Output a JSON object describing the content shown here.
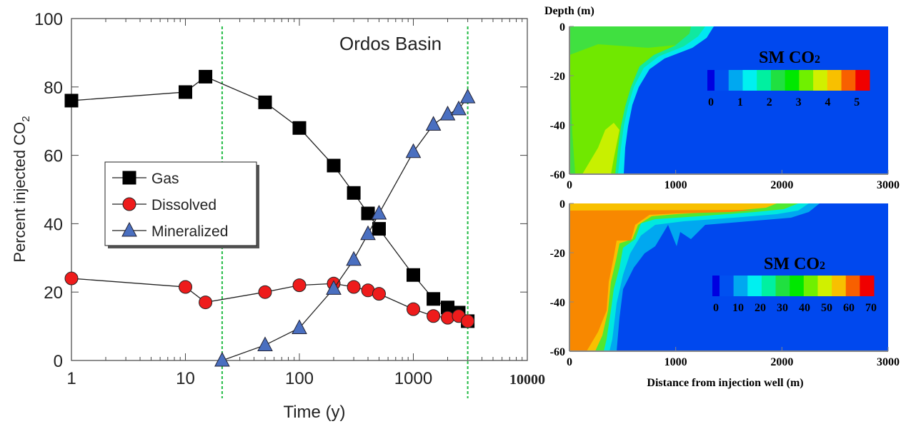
{
  "chart_data": [
    {
      "type": "line",
      "title": "Ordos Basin",
      "xlabel": "Time (y)",
      "ylabel": "Percent injected CO2",
      "ylabel_main": "Percent injected CO",
      "ylabel_sub": "2",
      "x_scale": "log",
      "xlim": [
        1,
        10000
      ],
      "ylim": [
        0,
        100
      ],
      "x_ticks": [
        "1",
        "10",
        "100",
        "1000",
        "10000"
      ],
      "x_tick_values": [
        1,
        10,
        100,
        1000,
        10000
      ],
      "y_ticks": [
        "0",
        "20",
        "40",
        "60",
        "80",
        "100"
      ],
      "y_tick_values": [
        0,
        20,
        40,
        60,
        80,
        100
      ],
      "grid": false,
      "legend_placement": "center-left",
      "reference_lines_x": [
        21,
        3000
      ],
      "reference_line_color": "#22bb44",
      "series": [
        {
          "name": "Gas",
          "marker": "square",
          "color": "#000000",
          "x": [
            1,
            10,
            15,
            50,
            100,
            200,
            300,
            400,
            500,
            1000,
            1500,
            2000,
            2500,
            3000
          ],
          "y": [
            76,
            78.5,
            83,
            75.5,
            68,
            57,
            49,
            43,
            38.5,
            25,
            18,
            15.5,
            14,
            11.5
          ]
        },
        {
          "name": "Dissolved",
          "marker": "circle",
          "color": "#ee1c1c",
          "x": [
            1,
            10,
            15,
            50,
            100,
            200,
            300,
            400,
            500,
            1000,
            1500,
            2000,
            2500,
            3000
          ],
          "y": [
            24,
            21.5,
            17,
            20,
            22,
            22.5,
            21.5,
            20.5,
            19.5,
            15,
            13,
            12.5,
            13,
            11.5
          ]
        },
        {
          "name": "Mineralized",
          "marker": "triangle",
          "color": "#4a6fc0",
          "x": [
            21,
            50,
            100,
            200,
            300,
            400,
            500,
            1000,
            1500,
            2000,
            2500,
            3000
          ],
          "y": [
            0,
            4.5,
            9.5,
            21,
            29.5,
            37,
            43,
            61,
            69,
            72,
            73.5,
            77
          ]
        }
      ]
    },
    {
      "type": "heatmap",
      "ylabel": "Depth (m)",
      "xlim": [
        0,
        3000
      ],
      "ylim": [
        -60,
        0
      ],
      "x_ticks": [
        "0",
        "1000",
        "2000",
        "3000"
      ],
      "y_ticks": [
        "0",
        "-20",
        "-40",
        "-60"
      ],
      "colorbar_title": "SM CO",
      "colorbar_title_sub": "2",
      "colorbar_ticks": [
        "0",
        "1",
        "2",
        "3",
        "4",
        "5"
      ],
      "colorbar_colors": [
        "#0000e0",
        "#0050f0",
        "#00a8f0",
        "#00f0f0",
        "#00f0a0",
        "#20e040",
        "#00e800",
        "#70f000",
        "#d0f000",
        "#f8c000",
        "#f86000",
        "#f00000"
      ]
    },
    {
      "type": "heatmap",
      "xlabel": "Distance from injection well (m)",
      "xlim": [
        0,
        3000
      ],
      "ylim": [
        -60,
        0
      ],
      "x_ticks": [
        "0",
        "1000",
        "2000",
        "3000"
      ],
      "y_ticks": [
        "0",
        "-20",
        "-40",
        "-60"
      ],
      "colorbar_title": "SM CO",
      "colorbar_title_sub": "2",
      "colorbar_ticks": [
        "0",
        "10",
        "20",
        "30",
        "40",
        "50",
        "60",
        "70"
      ],
      "colorbar_colors": [
        "#0000e0",
        "#0050f0",
        "#00a8f0",
        "#00f0f0",
        "#00f0a0",
        "#20e040",
        "#00e800",
        "#70f000",
        "#d0f000",
        "#f8c000",
        "#f86000",
        "#f00000"
      ]
    }
  ]
}
